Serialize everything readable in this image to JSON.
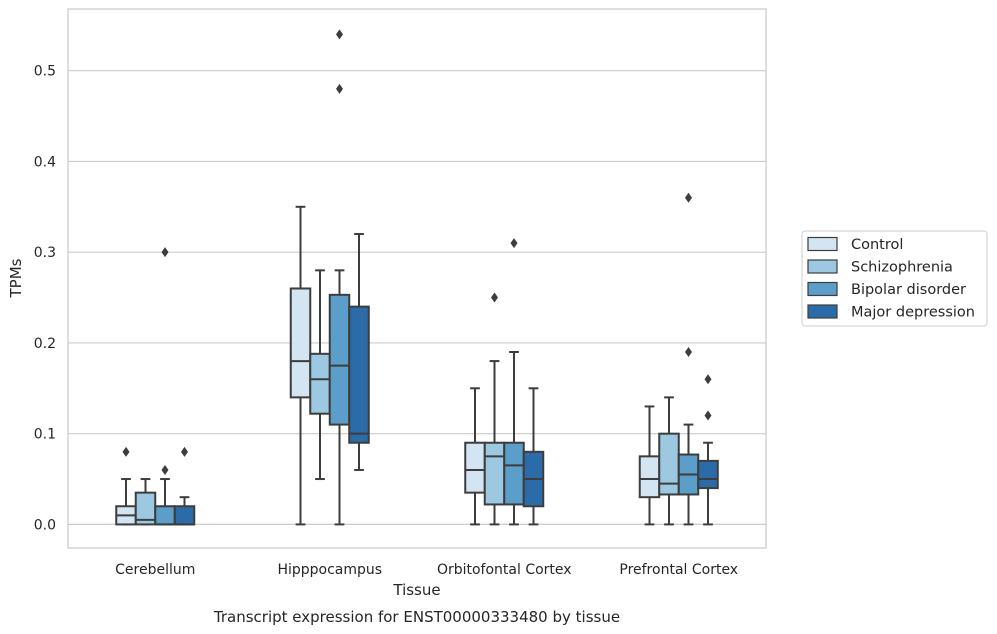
{
  "chart_data": {
    "type": "box",
    "xlabel": "Tissue",
    "ylabel": "TPMs",
    "caption": "Transcript expression for ENST00000333480 by tissue",
    "ylim": [
      -0.026,
      0.568
    ],
    "yticks": [
      "0.0",
      "0.1",
      "0.2",
      "0.3",
      "0.4",
      "0.5"
    ],
    "ytick_values": [
      0.0,
      0.1,
      0.2,
      0.3,
      0.4,
      0.5
    ],
    "grid": "horizontal",
    "legend_placement": "right",
    "categories": [
      "Cerebellum",
      "Hipppocampus",
      "Orbitofontal Cortex",
      "Prefrontal Cortex"
    ],
    "series": [
      {
        "name": "Control",
        "color": "#d3e4f3",
        "boxes": [
          {
            "whisker_low": 0.0,
            "q1": 0.0,
            "median": 0.01,
            "q3": 0.02,
            "whisker_high": 0.05,
            "outliers": [
              0.08
            ]
          },
          {
            "whisker_low": 0.0,
            "q1": 0.14,
            "median": 0.18,
            "q3": 0.26,
            "whisker_high": 0.35,
            "outliers": []
          },
          {
            "whisker_low": 0.0,
            "q1": 0.035,
            "median": 0.06,
            "q3": 0.09,
            "whisker_high": 0.15,
            "outliers": []
          },
          {
            "whisker_low": 0.0,
            "q1": 0.03,
            "median": 0.05,
            "q3": 0.075,
            "whisker_high": 0.13,
            "outliers": []
          }
        ]
      },
      {
        "name": "Schizophrenia",
        "color": "#9cc9e1",
        "boxes": [
          {
            "whisker_low": 0.0,
            "q1": 0.0,
            "median": 0.005,
            "q3": 0.035,
            "whisker_high": 0.05,
            "outliers": []
          },
          {
            "whisker_low": 0.05,
            "q1": 0.122,
            "median": 0.16,
            "q3": 0.188,
            "whisker_high": 0.28,
            "outliers": []
          },
          {
            "whisker_low": 0.0,
            "q1": 0.022,
            "median": 0.075,
            "q3": 0.09,
            "whisker_high": 0.18,
            "outliers": [
              0.25
            ]
          },
          {
            "whisker_low": 0.0,
            "q1": 0.033,
            "median": 0.045,
            "q3": 0.1,
            "whisker_high": 0.14,
            "outliers": []
          }
        ]
      },
      {
        "name": "Bipolar disorder",
        "color": "#5a9ec9",
        "boxes": [
          {
            "whisker_low": 0.0,
            "q1": 0.0,
            "median": 0.0,
            "q3": 0.02,
            "whisker_high": 0.05,
            "outliers": [
              0.06,
              0.3
            ]
          },
          {
            "whisker_low": 0.0,
            "q1": 0.11,
            "median": 0.175,
            "q3": 0.253,
            "whisker_high": 0.28,
            "outliers": [
              0.48,
              0.54
            ]
          },
          {
            "whisker_low": 0.0,
            "q1": 0.022,
            "median": 0.065,
            "q3": 0.09,
            "whisker_high": 0.19,
            "outliers": [
              0.31
            ]
          },
          {
            "whisker_low": 0.0,
            "q1": 0.033,
            "median": 0.055,
            "q3": 0.077,
            "whisker_high": 0.11,
            "outliers": [
              0.19,
              0.36
            ]
          }
        ]
      },
      {
        "name": "Major depression",
        "color": "#2b6ca8",
        "boxes": [
          {
            "whisker_low": 0.0,
            "q1": 0.0,
            "median": 0.0,
            "q3": 0.02,
            "whisker_high": 0.03,
            "outliers": [
              0.08
            ]
          },
          {
            "whisker_low": 0.06,
            "q1": 0.09,
            "median": 0.1,
            "q3": 0.24,
            "whisker_high": 0.32,
            "outliers": []
          },
          {
            "whisker_low": 0.0,
            "q1": 0.02,
            "median": 0.05,
            "q3": 0.08,
            "whisker_high": 0.15,
            "outliers": []
          },
          {
            "whisker_low": 0.0,
            "q1": 0.04,
            "median": 0.05,
            "q3": 0.07,
            "whisker_high": 0.09,
            "outliers": [
              0.12,
              0.16
            ]
          }
        ]
      }
    ]
  }
}
